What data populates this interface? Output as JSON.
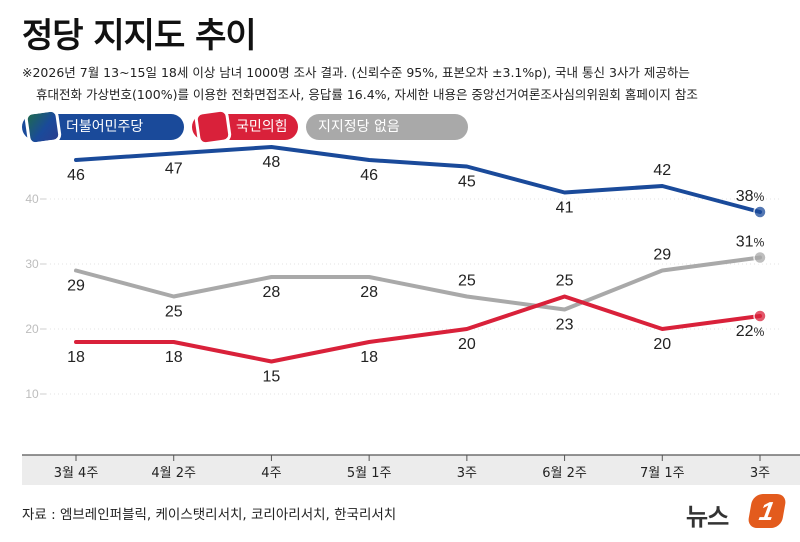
{
  "title": "정당 지지도 추이",
  "note_line1": "※2026년 7월 13~15일 18세 이상 남녀 1000명 조사 결과. (신뢰수준 95%, 표본오차 ±3.1%p), 국내 통신 3사가 제공하는",
  "note_line2": "휴대전화 가상번호(100%)를 이용한 전화면접조사, 응답률 16.4%, 자세한 내용은 중앙선거여론조사심의위원회 홈페이지 참조",
  "source": "자료 : 엠브레인퍼블릭, 케이스탯리서치, 코리아리서치, 한국리서치",
  "logo": {
    "text": "뉴스",
    "mark": "1"
  },
  "chart_data": {
    "type": "line",
    "categories": [
      "3월 4주",
      "4월 2주",
      "4주",
      "5월 1주",
      "3주",
      "6월 2주",
      "7월 1주",
      "3주"
    ],
    "y_ticks": [
      10,
      20,
      30,
      40
    ],
    "ylim": [
      0,
      55
    ],
    "grid": true,
    "legend_position": "top-left",
    "series": [
      {
        "name": "더불어민주당",
        "color": "#1a4a9a",
        "values": [
          46,
          47,
          48,
          46,
          45,
          41,
          42,
          38
        ],
        "labels": [
          "46",
          "47",
          "48",
          "46",
          "45",
          "41",
          "42",
          "38"
        ],
        "label_pos": [
          "below",
          "below",
          "below",
          "below",
          "below",
          "below",
          "above",
          "above"
        ],
        "last_suffix": "%"
      },
      {
        "name": "국민의힘",
        "color": "#d9213a",
        "values": [
          18,
          18,
          15,
          18,
          20,
          25,
          20,
          22
        ],
        "labels": [
          "18",
          "18",
          "15",
          "18",
          "20",
          "25",
          "20",
          "22"
        ],
        "label_pos": [
          "below",
          "below",
          "below",
          "below",
          "below",
          "above",
          "below",
          "below"
        ],
        "last_suffix": "%"
      },
      {
        "name": "지지정당 없음",
        "color": "#a9a9a9",
        "values": [
          29,
          25,
          28,
          28,
          25,
          23,
          29,
          31
        ],
        "labels": [
          "29",
          "25",
          "28",
          "28",
          "25",
          "23",
          "29",
          "31"
        ],
        "label_pos": [
          "below",
          "below",
          "below",
          "below",
          "above",
          "below",
          "above",
          "above"
        ],
        "last_suffix": "%"
      }
    ]
  }
}
